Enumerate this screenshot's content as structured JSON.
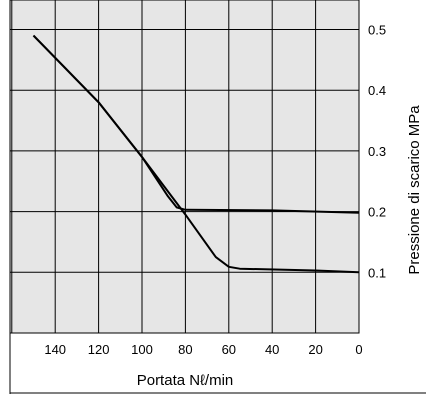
{
  "chart_data": {
    "type": "line",
    "title": "",
    "xlabel": "Portata Nℓ/min",
    "ylabel": "Pressione di scarico  MPa",
    "x_reversed": true,
    "xlim": [
      0,
      160
    ],
    "ylim": [
      0,
      0.55
    ],
    "x_ticks": [
      "140",
      "120",
      "100",
      "80",
      "60",
      "40",
      "20",
      "0"
    ],
    "y_ticks": [
      "0.5",
      "0.4",
      "0.3",
      "0.2",
      "0.1"
    ],
    "grid": true,
    "series": [
      {
        "points": [
          [
            150,
            0.49
          ],
          [
            120,
            0.38
          ],
          [
            100,
            0.29
          ],
          [
            88,
            0.225
          ],
          [
            84,
            0.207
          ],
          [
            80,
            0.203
          ],
          [
            40,
            0.202
          ],
          [
            0,
            0.198
          ]
        ]
      },
      {
        "points": [
          [
            150,
            0.49
          ],
          [
            120,
            0.38
          ],
          [
            100,
            0.29
          ],
          [
            80,
            0.195
          ],
          [
            66,
            0.125
          ],
          [
            60,
            0.109
          ],
          [
            55,
            0.106
          ],
          [
            20,
            0.103
          ],
          [
            0,
            0.1
          ]
        ]
      }
    ]
  }
}
